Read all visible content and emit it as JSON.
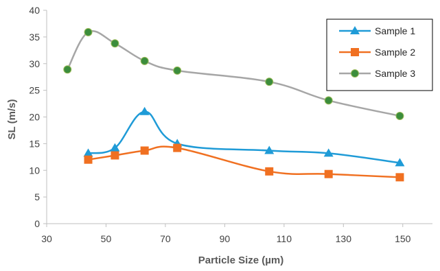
{
  "chart_data": {
    "type": "line",
    "title": "",
    "xlabel": "Particle Size (µm)",
    "ylabel": "SL (m/s)",
    "xlim": [
      30,
      160
    ],
    "ylim": [
      0,
      40
    ],
    "xticks": [
      30,
      50,
      70,
      90,
      110,
      130,
      150
    ],
    "yticks": [
      0,
      5,
      10,
      15,
      20,
      25,
      30,
      35,
      40
    ],
    "grid": false,
    "legend_position": "top-right",
    "series": [
      {
        "name": "Sample 1",
        "color": "#1f9bd7",
        "marker": "triangle",
        "x": [
          44,
          53,
          63,
          74,
          105,
          125,
          149
        ],
        "y": [
          13.2,
          14.2,
          21.0,
          15.0,
          13.7,
          13.2,
          11.4
        ]
      },
      {
        "name": "Sample 2",
        "color": "#f07021",
        "marker": "square",
        "x": [
          44,
          53,
          63,
          74,
          105,
          125,
          149
        ],
        "y": [
          12.0,
          12.8,
          13.7,
          14.2,
          9.8,
          9.3,
          8.7
        ]
      },
      {
        "name": "Sample 3",
        "color": "#a6a6a6",
        "markerColor": "#3c8d3c",
        "marker": "circle",
        "x": [
          37,
          44,
          53,
          63,
          74,
          105,
          125,
          149
        ],
        "y": [
          28.9,
          35.9,
          33.8,
          30.5,
          28.7,
          26.6,
          23.1,
          20.2
        ]
      }
    ]
  }
}
